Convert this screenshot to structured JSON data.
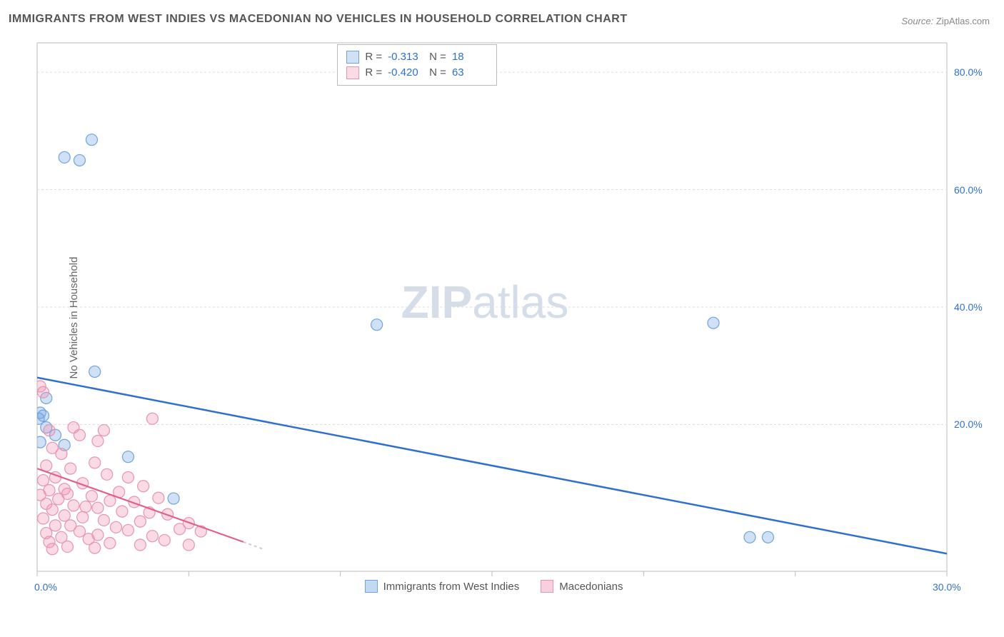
{
  "title": "IMMIGRANTS FROM WEST INDIES VS MACEDONIAN NO VEHICLES IN HOUSEHOLD CORRELATION CHART",
  "source_label": "Source:",
  "source_value": "ZipAtlas.com",
  "y_axis_label": "No Vehicles in Household",
  "watermark": {
    "zip": "ZIP",
    "atlas": "atlas",
    "color": "#d5dde8",
    "fontsize": 64
  },
  "chart": {
    "type": "scatter",
    "background": "#ffffff",
    "border_color": "#bbbbbb",
    "grid_color": "#dddddd",
    "tick_color": "#bbbbbb",
    "xlim": [
      0,
      30
    ],
    "ylim": [
      -5,
      85
    ],
    "x_ticks": [
      0,
      5,
      10,
      15,
      20,
      25,
      30
    ],
    "x_tick_labels": [
      "0.0%",
      "",
      "",
      "",
      "",
      "",
      "30.0%"
    ],
    "y_ticks": [
      20,
      40,
      60,
      80
    ],
    "y_tick_labels": [
      "20.0%",
      "40.0%",
      "60.0%",
      "80.0%"
    ],
    "marker_radius": 8,
    "marker_stroke_width": 1.2,
    "series": [
      {
        "name": "Immigrants from West Indies",
        "fill": "rgba(120,170,230,0.35)",
        "stroke": "#6fa3dd",
        "r_value": "-0.313",
        "n_value": "18",
        "trend": {
          "x1": 0,
          "y1": 28,
          "x2": 30,
          "y2": -2,
          "color": "#2f6fd0",
          "width": 2.5,
          "dash": ""
        },
        "points": [
          [
            0.9,
            65.5
          ],
          [
            1.4,
            65
          ],
          [
            1.8,
            68.5
          ],
          [
            11.2,
            37
          ],
          [
            22.3,
            37.3
          ],
          [
            1.9,
            29
          ],
          [
            0.3,
            24.5
          ],
          [
            0.1,
            22
          ],
          [
            0.2,
            21.5
          ],
          [
            0.3,
            19.5
          ],
          [
            0.6,
            18.2
          ],
          [
            0.9,
            16.5
          ],
          [
            3.0,
            14.5
          ],
          [
            4.5,
            7.4
          ],
          [
            23.5,
            0.8
          ],
          [
            24.1,
            0.8
          ],
          [
            0.05,
            21
          ],
          [
            0.1,
            17
          ]
        ]
      },
      {
        "name": "Macedonians",
        "fill": "rgba(240,150,180,0.35)",
        "stroke": "#e893b0",
        "r_value": "-0.420",
        "n_value": "63",
        "trend": {
          "x1": 0,
          "y1": 12.5,
          "x2": 6.8,
          "y2": 0,
          "color": "#e15f8a",
          "width": 2.2,
          "dash": ""
        },
        "trend_ext": {
          "x1": 6.8,
          "y1": 0,
          "x2": 7.5,
          "y2": -1.3,
          "color": "#cccccc",
          "width": 2,
          "dash": "4 4"
        },
        "points": [
          [
            0.1,
            26.5
          ],
          [
            0.2,
            25.5
          ],
          [
            1.2,
            19.5
          ],
          [
            2.2,
            19
          ],
          [
            0.4,
            19
          ],
          [
            3.8,
            21
          ],
          [
            1.4,
            18.2
          ],
          [
            2.0,
            17.2
          ],
          [
            0.5,
            16
          ],
          [
            0.8,
            15
          ],
          [
            1.9,
            13.5
          ],
          [
            0.3,
            13
          ],
          [
            1.1,
            12.5
          ],
          [
            2.3,
            11.5
          ],
          [
            3.0,
            11
          ],
          [
            0.6,
            11
          ],
          [
            0.2,
            10.5
          ],
          [
            1.5,
            10
          ],
          [
            3.5,
            9.5
          ],
          [
            0.9,
            9
          ],
          [
            0.4,
            8.8
          ],
          [
            2.7,
            8.5
          ],
          [
            1.0,
            8.2
          ],
          [
            0.1,
            8
          ],
          [
            1.8,
            7.8
          ],
          [
            4.0,
            7.5
          ],
          [
            0.7,
            7.3
          ],
          [
            2.4,
            7
          ],
          [
            3.2,
            6.8
          ],
          [
            0.3,
            6.5
          ],
          [
            1.2,
            6.2
          ],
          [
            1.6,
            6
          ],
          [
            2.0,
            5.8
          ],
          [
            0.5,
            5.5
          ],
          [
            2.8,
            5.2
          ],
          [
            3.7,
            5
          ],
          [
            4.3,
            4.7
          ],
          [
            0.9,
            4.5
          ],
          [
            1.5,
            4.2
          ],
          [
            0.2,
            4
          ],
          [
            2.2,
            3.7
          ],
          [
            3.4,
            3.5
          ],
          [
            5.0,
            3.2
          ],
          [
            0.6,
            2.8
          ],
          [
            1.1,
            2.8
          ],
          [
            2.6,
            2.5
          ],
          [
            4.7,
            2.2
          ],
          [
            3.0,
            2
          ],
          [
            1.4,
            1.8
          ],
          [
            0.3,
            1.5
          ],
          [
            2.0,
            1.2
          ],
          [
            5.4,
            1.8
          ],
          [
            3.8,
            1
          ],
          [
            0.8,
            0.8
          ],
          [
            1.7,
            0.5
          ],
          [
            4.2,
            0.3
          ],
          [
            0.4,
            0
          ],
          [
            2.4,
            -0.2
          ],
          [
            3.4,
            -0.5
          ],
          [
            1.0,
            -0.8
          ],
          [
            5.0,
            -0.5
          ],
          [
            1.9,
            -1
          ],
          [
            0.5,
            -1.2
          ]
        ]
      }
    ],
    "legend_bottom": [
      {
        "label": "Immigrants from West Indies",
        "fill": "rgba(120,170,230,0.45)",
        "stroke": "#6fa3dd"
      },
      {
        "label": "Macedonians",
        "fill": "rgba(240,150,180,0.45)",
        "stroke": "#e893b0"
      }
    ]
  }
}
